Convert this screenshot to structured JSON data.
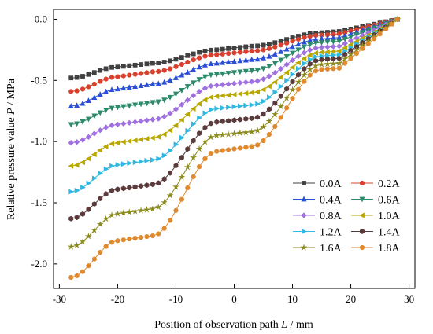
{
  "chart_data": {
    "type": "line",
    "xlabel_text": "Position of observation path ",
    "xlabel_var": "L",
    "xlabel_unit": " / mm",
    "ylabel_text": "Relative pressure value ",
    "ylabel_var": "P",
    "ylabel_unit": " / MPa",
    "xlim": [
      -31,
      31
    ],
    "ylim": [
      -2.2,
      0.08
    ],
    "xticks": [
      -30,
      -20,
      -10,
      0,
      10,
      20,
      30
    ],
    "xtick_labels": [
      "-30",
      "-20",
      "-10",
      "0",
      "10",
      "20",
      "30"
    ],
    "yticks": [
      0.0,
      -0.5,
      -1.0,
      -1.5,
      -2.0
    ],
    "ytick_labels": [
      "0.0",
      "-0.5",
      "-1.0",
      "-1.5",
      "-2.0"
    ],
    "grid": false,
    "legend_position": "lower-right",
    "x_start": -28,
    "x_end": 28,
    "x_step": 1,
    "series": [
      {
        "name": "0.0A",
        "color": "#404040",
        "marker": "square",
        "p0": -0.48,
        "a": -0.39,
        "b": -0.36,
        "c": -0.25,
        "d": -0.22,
        "e": -0.11,
        "f": -0.1
      },
      {
        "name": "0.2A",
        "color": "#d9402e",
        "marker": "circle",
        "p0": -0.59,
        "a": -0.47,
        "b": -0.43,
        "c": -0.29,
        "d": -0.26,
        "e": -0.13,
        "f": -0.12
      },
      {
        "name": "0.4A",
        "color": "#2a4fd6",
        "marker": "triangle-up",
        "p0": -0.71,
        "a": -0.57,
        "b": -0.53,
        "c": -0.36,
        "d": -0.33,
        "e": -0.16,
        "f": -0.15
      },
      {
        "name": "0.6A",
        "color": "#2a8a6a",
        "marker": "triangle-down",
        "p0": -0.86,
        "a": -0.72,
        "b": -0.68,
        "c": -0.45,
        "d": -0.42,
        "e": -0.19,
        "f": -0.18
      },
      {
        "name": "0.8A",
        "color": "#a070e0",
        "marker": "diamond",
        "p0": -1.01,
        "a": -0.86,
        "b": -0.82,
        "c": -0.54,
        "d": -0.51,
        "e": -0.23,
        "f": -0.22
      },
      {
        "name": "1.0A",
        "color": "#b8a800",
        "marker": "triangle-left",
        "p0": -1.2,
        "a": -1.01,
        "b": -0.97,
        "c": -0.63,
        "d": -0.6,
        "e": -0.27,
        "f": -0.26
      },
      {
        "name": "1.2A",
        "color": "#30b8e0",
        "marker": "triangle-right",
        "p0": -1.41,
        "a": -1.19,
        "b": -1.15,
        "c": -0.73,
        "d": -0.7,
        "e": -0.3,
        "f": -0.29
      },
      {
        "name": "1.4A",
        "color": "#5a3a3a",
        "marker": "hexagon",
        "p0": -1.63,
        "a": -1.39,
        "b": -1.35,
        "c": -0.84,
        "d": -0.81,
        "e": -0.33,
        "f": -0.32
      },
      {
        "name": "1.6A",
        "color": "#8a8a1a",
        "marker": "star",
        "p0": -1.86,
        "a": -1.59,
        "b": -1.55,
        "c": -0.95,
        "d": -0.92,
        "e": -0.37,
        "f": -0.36
      },
      {
        "name": "1.8A",
        "color": "#e08a30",
        "marker": "circle",
        "p0": -2.11,
        "a": -1.81,
        "b": -1.77,
        "c": -1.08,
        "d": -1.04,
        "e": -0.41,
        "f": -0.4
      }
    ]
  }
}
